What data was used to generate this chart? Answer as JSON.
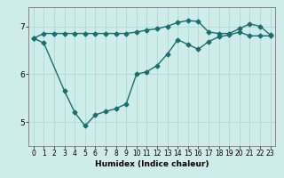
{
  "xlabel": "Humidex (Indice chaleur)",
  "ylabel": "",
  "bg_color": "#ceecea",
  "grid_color": "#aed8d4",
  "line_color": "#1a6e6e",
  "line1_x": [
    0,
    1,
    2,
    3,
    4,
    5,
    6,
    7,
    8,
    9,
    10,
    11,
    12,
    13,
    14,
    15,
    16,
    17,
    18,
    19,
    20,
    21,
    22,
    23
  ],
  "line1_y": [
    6.75,
    6.85,
    6.85,
    6.85,
    6.85,
    6.85,
    6.85,
    6.85,
    6.85,
    6.85,
    6.88,
    6.92,
    6.95,
    7.0,
    7.08,
    7.12,
    7.1,
    6.88,
    6.85,
    6.85,
    6.95,
    7.05,
    7.0,
    6.82
  ],
  "line2_x": [
    0,
    1,
    3,
    4,
    5,
    6,
    7,
    8,
    9,
    10,
    11,
    12,
    13,
    14,
    15,
    16,
    17,
    18,
    19,
    20,
    21,
    22,
    23
  ],
  "line2_y": [
    6.75,
    6.65,
    5.65,
    5.2,
    4.92,
    5.15,
    5.22,
    5.28,
    5.38,
    6.0,
    6.05,
    6.18,
    6.42,
    6.72,
    6.62,
    6.52,
    6.68,
    6.78,
    6.82,
    6.88,
    6.8,
    6.8,
    6.8
  ],
  "xlim": [
    -0.5,
    23.5
  ],
  "ylim": [
    4.5,
    7.4
  ],
  "yticks": [
    5,
    6,
    7
  ],
  "xticks": [
    0,
    1,
    2,
    3,
    4,
    5,
    6,
    7,
    8,
    9,
    10,
    11,
    12,
    13,
    14,
    15,
    16,
    17,
    18,
    19,
    20,
    21,
    22,
    23
  ],
  "marker": "D",
  "markersize": 2.5,
  "linewidth": 1.0,
  "xlabel_fontsize": 6.5,
  "tick_fontsize": 5.5,
  "ytick_fontsize": 6.5
}
